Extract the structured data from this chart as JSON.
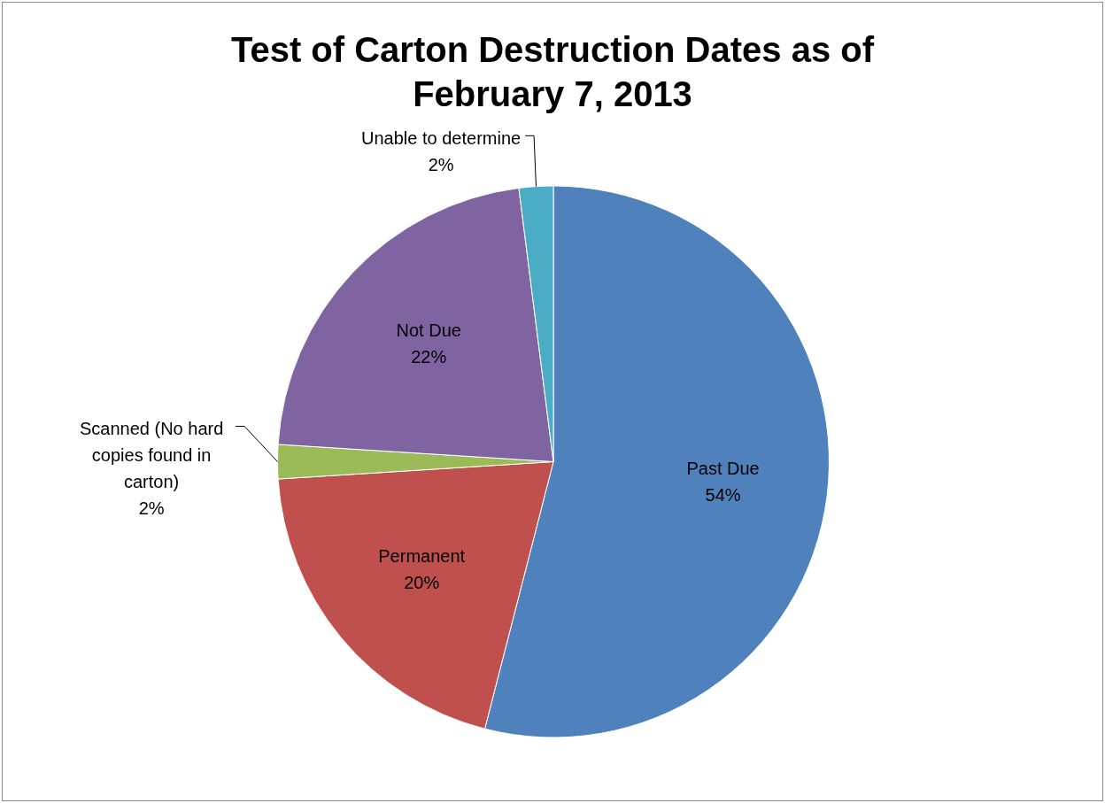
{
  "chart_data": {
    "type": "pie",
    "title": "Test of Carton Destruction Dates as of February 7, 2013",
    "categories": [
      "Past Due",
      "Permanent",
      "Scanned (No hard copies found in carton)",
      "Not Due",
      "Unable to determine"
    ],
    "values": [
      54,
      20,
      2,
      22,
      2
    ],
    "colors": [
      "#4f81bd",
      "#c0504d",
      "#9bbb59",
      "#8064a2",
      "#4bacc6"
    ],
    "value_labels": [
      "54%",
      "20%",
      "2%",
      "22%",
      "2%"
    ],
    "legend": false
  }
}
